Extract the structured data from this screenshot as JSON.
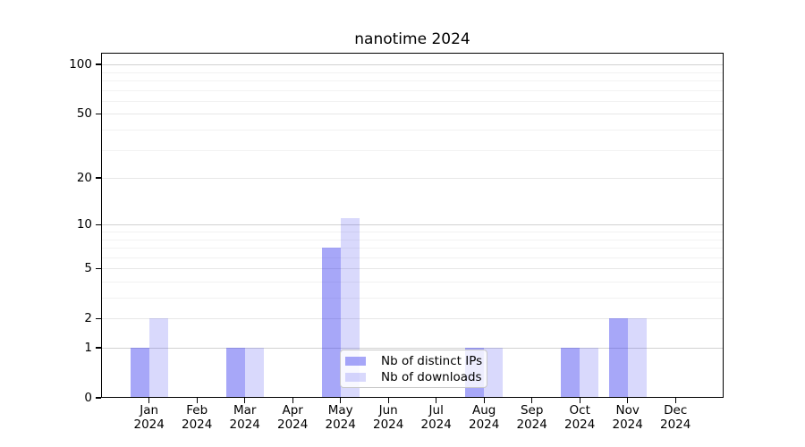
{
  "chart_data": {
    "type": "bar",
    "title": "nanotime 2024",
    "categories": [
      "Jan 2024",
      "Feb 2024",
      "Mar 2024",
      "Apr 2024",
      "May 2024",
      "Jun 2024",
      "Jul 2024",
      "Aug 2024",
      "Sep 2024",
      "Oct 2024",
      "Nov 2024",
      "Dec 2024"
    ],
    "series": [
      {
        "name": "Nb of distinct IPs",
        "color": "rgba(55,55,238,0.44)",
        "color_hex_on_white": "#a7a7f7",
        "values": [
          1,
          0,
          1,
          0,
          7,
          0,
          0,
          1,
          0,
          1,
          2,
          0
        ]
      },
      {
        "name": "Nb of downloads",
        "color": "rgba(55,55,238,0.19)",
        "color_hex_on_white": "#d9d9fb",
        "values": [
          2,
          0,
          1,
          0,
          11,
          0,
          0,
          1,
          0,
          1,
          2,
          0
        ]
      }
    ],
    "y_axis": {
      "scale": "log10(1+x)",
      "tick_values": [
        0,
        1,
        2,
        5,
        10,
        20,
        50,
        100
      ],
      "major_grid": [
        1,
        10,
        100
      ],
      "mid_grid": [
        2,
        5,
        20,
        50
      ],
      "minor_grid": [
        3,
        4,
        6,
        7,
        8,
        9,
        30,
        40,
        60,
        70,
        80,
        90
      ],
      "ylim": [
        0,
        120
      ]
    },
    "legend_position": "lower center",
    "grid": true
  },
  "colors": {
    "grid_major": "#d2d2d2",
    "grid_mid": "#e7e7e7",
    "grid_minor": "#f2f2f2",
    "axis": "#000000",
    "text": "#000000",
    "legend_border": "#c8c8c8",
    "legend_bg": "rgba(255,255,255,0.8)",
    "background": "#ffffff"
  }
}
